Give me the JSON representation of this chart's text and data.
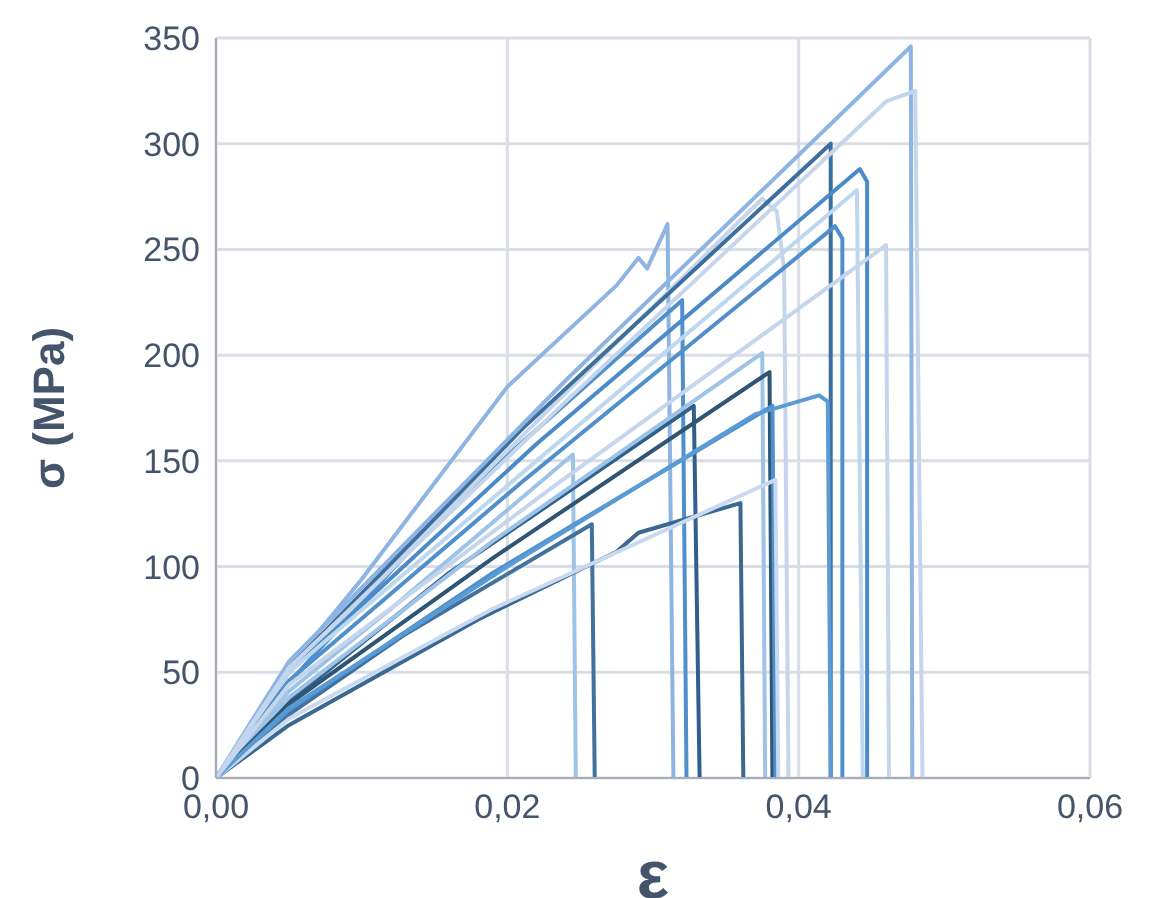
{
  "chart_data": {
    "type": "line",
    "xlabel": "ε",
    "ylabel": "σ (MPa)",
    "xlim": [
      0,
      0.06
    ],
    "ylim": [
      0,
      350
    ],
    "xticks": [
      {
        "value": 0,
        "label": "0,00"
      },
      {
        "value": 0.02,
        "label": "0,02"
      },
      {
        "value": 0.04,
        "label": "0,04"
      },
      {
        "value": 0.06,
        "label": "0,06"
      }
    ],
    "yticks": [
      0,
      50,
      100,
      150,
      200,
      250,
      300,
      350
    ],
    "grid": true,
    "marker": "none",
    "line_style": "solid",
    "series": [
      {
        "color": "#9dc3e6",
        "x": [
          0,
          0.005,
          0.012,
          0.0245,
          0.0247
        ],
        "values": [
          0,
          41,
          80,
          153,
          0
        ]
      },
      {
        "color": "#41719c",
        "x": [
          0,
          0.005,
          0.013,
          0.0258,
          0.026
        ],
        "values": [
          0,
          30,
          68,
          120,
          0
        ]
      },
      {
        "color": "#8eb4e3",
        "x": [
          0,
          0.005,
          0.01,
          0.02,
          0.0275,
          0.029,
          0.0296,
          0.031,
          0.0314
        ],
        "values": [
          0,
          52,
          94,
          185,
          233,
          246,
          241,
          262,
          0
        ]
      },
      {
        "color": "#4f8fcc",
        "x": [
          0,
          0.005,
          0.016,
          0.032,
          0.0323
        ],
        "values": [
          0,
          45,
          128,
          226,
          0
        ]
      },
      {
        "color": "#2f5f8a",
        "x": [
          0,
          0.005,
          0.016,
          0.0328,
          0.0332
        ],
        "values": [
          0,
          36,
          97,
          176,
          0
        ]
      },
      {
        "color": "#3b6890",
        "x": [
          0,
          0.005,
          0.018,
          0.0275,
          0.029,
          0.036,
          0.0362
        ],
        "values": [
          0,
          25,
          75,
          107,
          116,
          130,
          0
        ]
      },
      {
        "color": "#9dc3e6",
        "x": [
          0,
          0.005,
          0.019,
          0.0375,
          0.0377
        ],
        "values": [
          0,
          38,
          112,
          201,
          0
        ]
      },
      {
        "color": "#2f5575",
        "x": [
          0,
          0.005,
          0.019,
          0.038,
          0.0382
        ],
        "values": [
          0,
          35,
          104,
          192,
          0
        ]
      },
      {
        "color": "#4f8fcc",
        "x": [
          0,
          0.005,
          0.019,
          0.0382,
          0.0384
        ],
        "values": [
          0,
          32,
          97,
          176,
          0
        ]
      },
      {
        "color": "#c9daf0",
        "x": [
          0,
          0.005,
          0.019,
          0.0384,
          0.0386
        ],
        "values": [
          0,
          28,
          80,
          141,
          0
        ]
      },
      {
        "color": "#c5d6ec",
        "x": [
          0,
          0.005,
          0.019,
          0.0375,
          0.0385,
          0.039,
          0.0393
        ],
        "values": [
          0,
          50,
          148,
          274,
          268,
          240,
          0
        ]
      },
      {
        "color": "#3d6f9e",
        "x": [
          0,
          0.005,
          0.021,
          0.0422,
          0.0422
        ],
        "values": [
          0,
          52,
          165,
          300,
          0
        ]
      },
      {
        "color": "#5b9bd5",
        "x": [
          0,
          0.005,
          0.02,
          0.037,
          0.0414,
          0.042,
          0.0422
        ],
        "values": [
          0,
          33,
          100,
          172,
          181,
          178,
          0
        ]
      },
      {
        "color": "#4f8fcc",
        "x": [
          0,
          0.005,
          0.021,
          0.0425,
          0.043,
          0.043
        ],
        "values": [
          0,
          46,
          140,
          261,
          255,
          0
        ]
      },
      {
        "color": "#4a8ac8",
        "x": [
          0,
          0.005,
          0.022,
          0.0442,
          0.0447,
          0.0447
        ],
        "values": [
          0,
          50,
          158,
          288,
          282,
          0
        ]
      },
      {
        "color": "#bdd7ee",
        "x": [
          0,
          0.005,
          0.022,
          0.044,
          0.0444
        ],
        "values": [
          0,
          50,
          150,
          278,
          0
        ]
      },
      {
        "color": "#c5d6ec",
        "x": [
          0,
          0.005,
          0.023,
          0.046,
          0.0462
        ],
        "values": [
          0,
          44,
          137,
          252,
          0
        ]
      },
      {
        "color": "#8eb4e3",
        "x": [
          0,
          0.005,
          0.024,
          0.0477,
          0.0478
        ],
        "values": [
          0,
          55,
          188,
          346,
          0
        ]
      },
      {
        "color": "#c5d6ec",
        "x": [
          0,
          0.005,
          0.024,
          0.046,
          0.048,
          0.0485
        ],
        "values": [
          0,
          52,
          178,
          320,
          325,
          0
        ]
      }
    ]
  }
}
